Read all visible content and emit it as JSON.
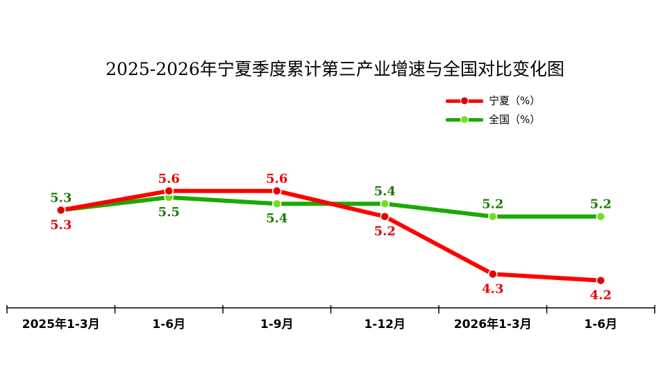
{
  "chart_data": {
    "type": "line",
    "title": "2025-2026年宁夏季度累计第三产业增速与全国对比变化图",
    "categories": [
      "2025年1-3月",
      "1-6月",
      "1-9月",
      "1-12月",
      "2026年1-3月",
      "1-6月"
    ],
    "series": [
      {
        "name": "宁夏（%）",
        "color": "#ff0000",
        "marker_color": "#e00000",
        "values": [
          5.3,
          5.6,
          5.6,
          5.2,
          4.3,
          4.2
        ]
      },
      {
        "name": "全国（%）",
        "color": "#1aaa00",
        "marker_color": "#77dd22",
        "values": [
          5.3,
          5.5,
          5.4,
          5.4,
          5.2,
          5.2
        ]
      }
    ],
    "label_colors": {
      "ningxia": "#e60000",
      "national": "#1a7a00"
    },
    "ylim": [
      0,
      10
    ],
    "grid": false,
    "legend_position": "top-right"
  }
}
